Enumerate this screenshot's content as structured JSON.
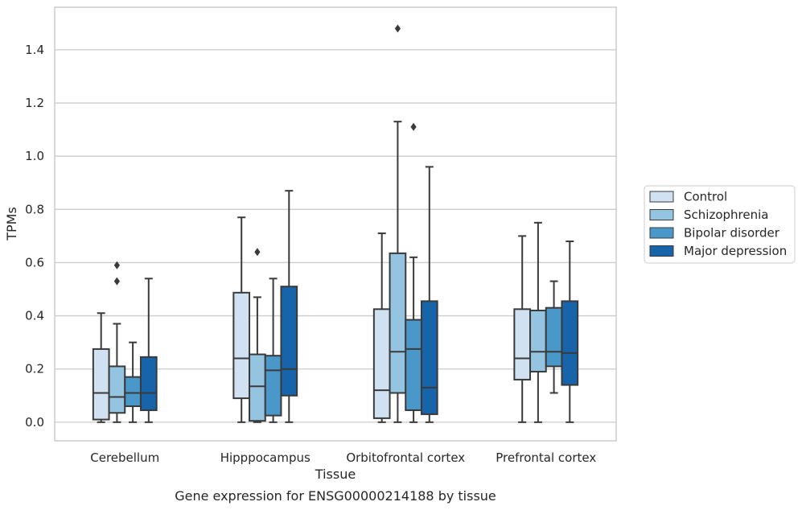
{
  "chart_data": {
    "type": "box",
    "title": "",
    "caption": "Gene expression for ENSG00000214188 by tissue",
    "xlabel": "Tissue",
    "ylabel": "TPMs",
    "ylim": [
      -0.07,
      1.56
    ],
    "yticks": [
      "0.0",
      "0.2",
      "0.4",
      "0.6",
      "0.8",
      "1.0",
      "1.2",
      "1.4"
    ],
    "categories": [
      "Cerebellum",
      "Hipppocampus",
      "Orbitofrontal cortex",
      "Prefrontal cortex"
    ],
    "grid": "horizontal",
    "legend_position": "right",
    "series": [
      {
        "name": "Control",
        "color": "#d0e1f2",
        "boxes": [
          {
            "whislo": 0.0,
            "q1": 0.01,
            "median": 0.11,
            "q3": 0.275,
            "whishi": 0.41,
            "fliers": []
          },
          {
            "whislo": 0.0,
            "q1": 0.09,
            "median": 0.24,
            "q3": 0.487,
            "whishi": 0.77,
            "fliers": []
          },
          {
            "whislo": 0.0,
            "q1": 0.015,
            "median": 0.12,
            "q3": 0.425,
            "whishi": 0.71,
            "fliers": []
          },
          {
            "whislo": 0.0,
            "q1": 0.16,
            "median": 0.24,
            "q3": 0.425,
            "whishi": 0.7,
            "fliers": []
          }
        ]
      },
      {
        "name": "Schizophrenia",
        "color": "#94c4df",
        "boxes": [
          {
            "whislo": 0.0,
            "q1": 0.035,
            "median": 0.095,
            "q3": 0.21,
            "whishi": 0.37,
            "fliers": [
              0.53,
              0.59
            ]
          },
          {
            "whislo": 0.0,
            "q1": 0.005,
            "median": 0.135,
            "q3": 0.255,
            "whishi": 0.47,
            "fliers": [
              0.64
            ]
          },
          {
            "whislo": 0.0,
            "q1": 0.11,
            "median": 0.265,
            "q3": 0.635,
            "whishi": 1.13,
            "fliers": [
              1.48
            ]
          },
          {
            "whislo": 0.0,
            "q1": 0.19,
            "median": 0.265,
            "q3": 0.42,
            "whishi": 0.75,
            "fliers": []
          }
        ]
      },
      {
        "name": "Bipolar disorder",
        "color": "#4a98c9",
        "boxes": [
          {
            "whislo": 0.0,
            "q1": 0.06,
            "median": 0.11,
            "q3": 0.17,
            "whishi": 0.3,
            "fliers": []
          },
          {
            "whislo": 0.0,
            "q1": 0.025,
            "median": 0.195,
            "q3": 0.25,
            "whishi": 0.54,
            "fliers": []
          },
          {
            "whislo": 0.0,
            "q1": 0.045,
            "median": 0.275,
            "q3": 0.385,
            "whishi": 0.62,
            "fliers": [
              1.11
            ]
          },
          {
            "whislo": 0.11,
            "q1": 0.21,
            "median": 0.265,
            "q3": 0.43,
            "whishi": 0.53,
            "fliers": []
          }
        ]
      },
      {
        "name": "Major depression",
        "color": "#1764ab",
        "boxes": [
          {
            "whislo": 0.0,
            "q1": 0.045,
            "median": 0.11,
            "q3": 0.245,
            "whishi": 0.54,
            "fliers": []
          },
          {
            "whislo": 0.0,
            "q1": 0.1,
            "median": 0.2,
            "q3": 0.51,
            "whishi": 0.87,
            "fliers": []
          },
          {
            "whislo": 0.0,
            "q1": 0.03,
            "median": 0.13,
            "q3": 0.455,
            "whishi": 0.96,
            "fliers": []
          },
          {
            "whislo": 0.0,
            "q1": 0.14,
            "median": 0.26,
            "q3": 0.455,
            "whishi": 0.68,
            "fliers": []
          }
        ]
      }
    ]
  }
}
